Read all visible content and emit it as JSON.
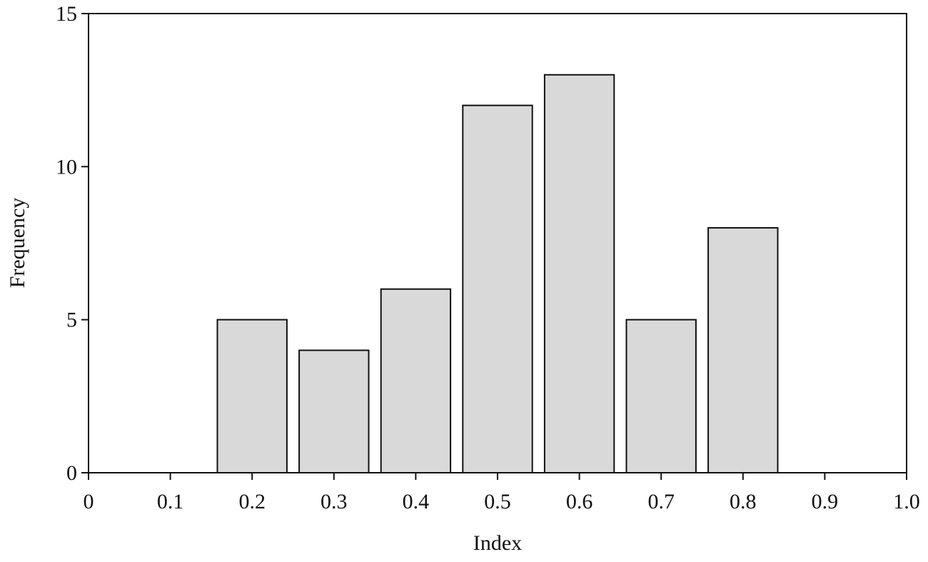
{
  "chart_data": {
    "type": "bar",
    "x": [
      0.2,
      0.3,
      0.4,
      0.5,
      0.6,
      0.7,
      0.8
    ],
    "values": [
      5,
      4,
      6,
      12,
      13,
      5,
      8
    ],
    "color": "#d9d9d9",
    "xlabel": "Index",
    "ylabel": "Frequency",
    "xlim": [
      0,
      1
    ],
    "xticks": [
      0,
      0.1,
      0.2,
      0.3,
      0.4,
      0.5,
      0.6,
      0.7,
      0.8,
      0.9,
      {
        "value": 1,
        "label": "1.0"
      }
    ],
    "ylim": [
      0,
      15
    ],
    "yticks": [
      0,
      5,
      10,
      15
    ],
    "grid": false
  }
}
